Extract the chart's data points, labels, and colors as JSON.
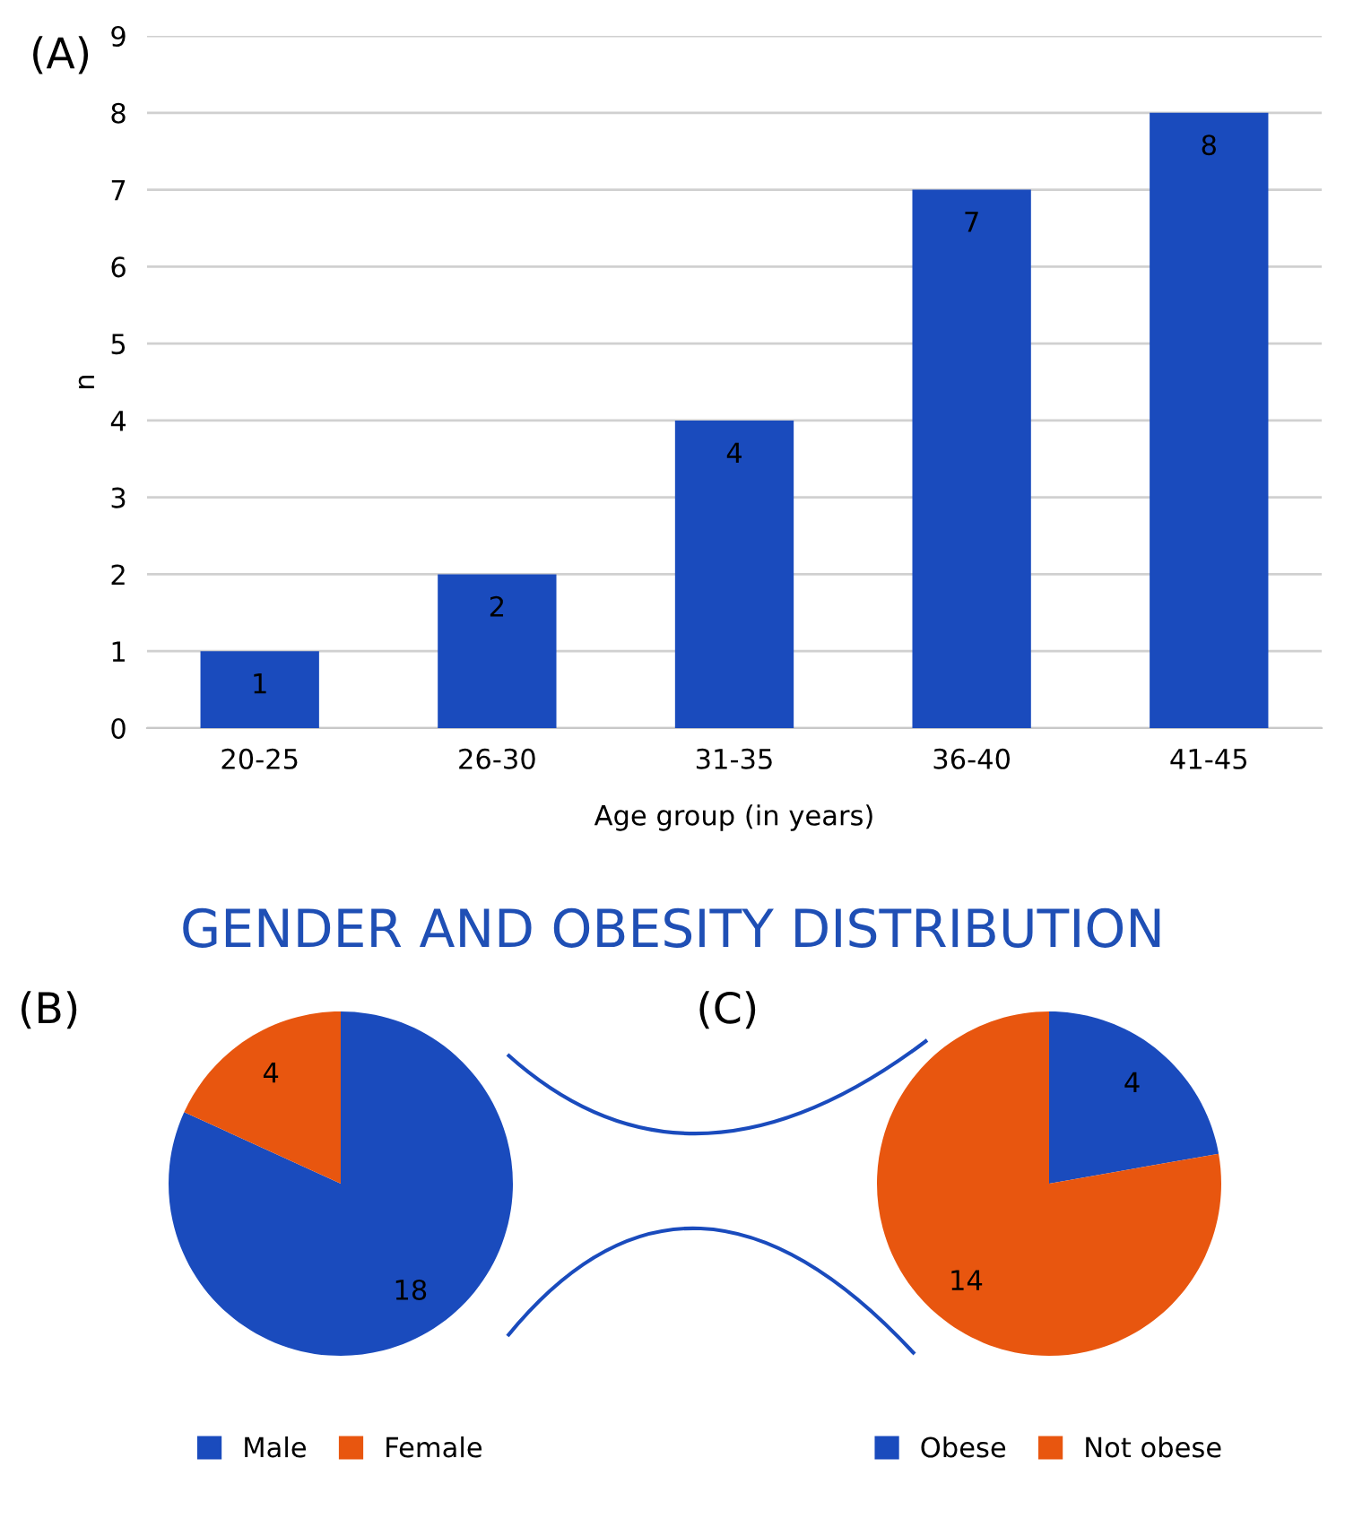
{
  "chart_data": [
    {
      "type": "bar",
      "xlabel": "Age group (in years)",
      "ylabel": "n",
      "categories": [
        "20-25",
        "26-30",
        "31-35",
        "36-40",
        "41-45"
      ],
      "values": [
        1,
        2,
        4,
        7,
        8
      ],
      "color": "#1a4bbd",
      "ylim": [
        0,
        9
      ],
      "yticks": [
        0,
        1,
        2,
        3,
        4,
        5,
        6,
        7,
        8,
        9
      ],
      "grid": "y",
      "data_labels": true,
      "annotations": [
        "(A)"
      ]
    },
    {
      "type": "pie",
      "title": "GENDER AND OBESITY DISTRIBUTION",
      "categories": [
        "Male",
        "Female"
      ],
      "values": [
        18,
        4
      ],
      "colors": [
        "#1a4bbd",
        "#e8560f"
      ],
      "data_labels": true,
      "legend": "bottom",
      "annotations": [
        "(B)"
      ]
    },
    {
      "type": "pie",
      "categories": [
        "Obese",
        "Not obese"
      ],
      "values": [
        4,
        14
      ],
      "colors": [
        "#1a4bbd",
        "#e8560f"
      ],
      "data_labels": true,
      "legend": "bottom",
      "annotations": [
        "(C)"
      ]
    }
  ]
}
